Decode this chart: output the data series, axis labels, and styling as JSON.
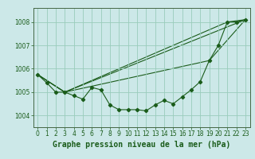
{
  "background_color": "#cce8e8",
  "grid_color": "#99ccbb",
  "line_color": "#1a5c1a",
  "title": "Graphe pression niveau de la mer (hPa)",
  "xlim": [
    -0.5,
    23.5
  ],
  "ylim": [
    1003.5,
    1008.6
  ],
  "yticks": [
    1004,
    1005,
    1006,
    1007,
    1008
  ],
  "xticks": [
    0,
    1,
    2,
    3,
    4,
    5,
    6,
    7,
    8,
    9,
    10,
    11,
    12,
    13,
    14,
    15,
    16,
    17,
    18,
    19,
    20,
    21,
    22,
    23
  ],
  "series1": [
    1005.75,
    1005.4,
    1005.0,
    1005.0,
    1004.85,
    1004.7,
    1005.2,
    1005.1,
    1004.45,
    1004.25,
    1004.25,
    1004.25,
    1004.2,
    1004.45,
    1004.65,
    1004.5,
    1004.8,
    1005.1,
    1005.45,
    1006.35,
    1007.0,
    1008.0,
    1008.0,
    1008.1
  ],
  "series2_x": [
    0,
    3,
    23
  ],
  "series2_y": [
    1005.75,
    1005.0,
    1008.1
  ],
  "series3_x": [
    0,
    3,
    19,
    23
  ],
  "series3_y": [
    1005.75,
    1005.0,
    1006.35,
    1008.1
  ],
  "series4_x": [
    0,
    3,
    21,
    23
  ],
  "series4_y": [
    1005.75,
    1005.0,
    1008.0,
    1008.1
  ],
  "tick_fontsize": 5.5,
  "label_fontsize": 7.0,
  "line_width": 0.8,
  "marker_size": 2.2
}
